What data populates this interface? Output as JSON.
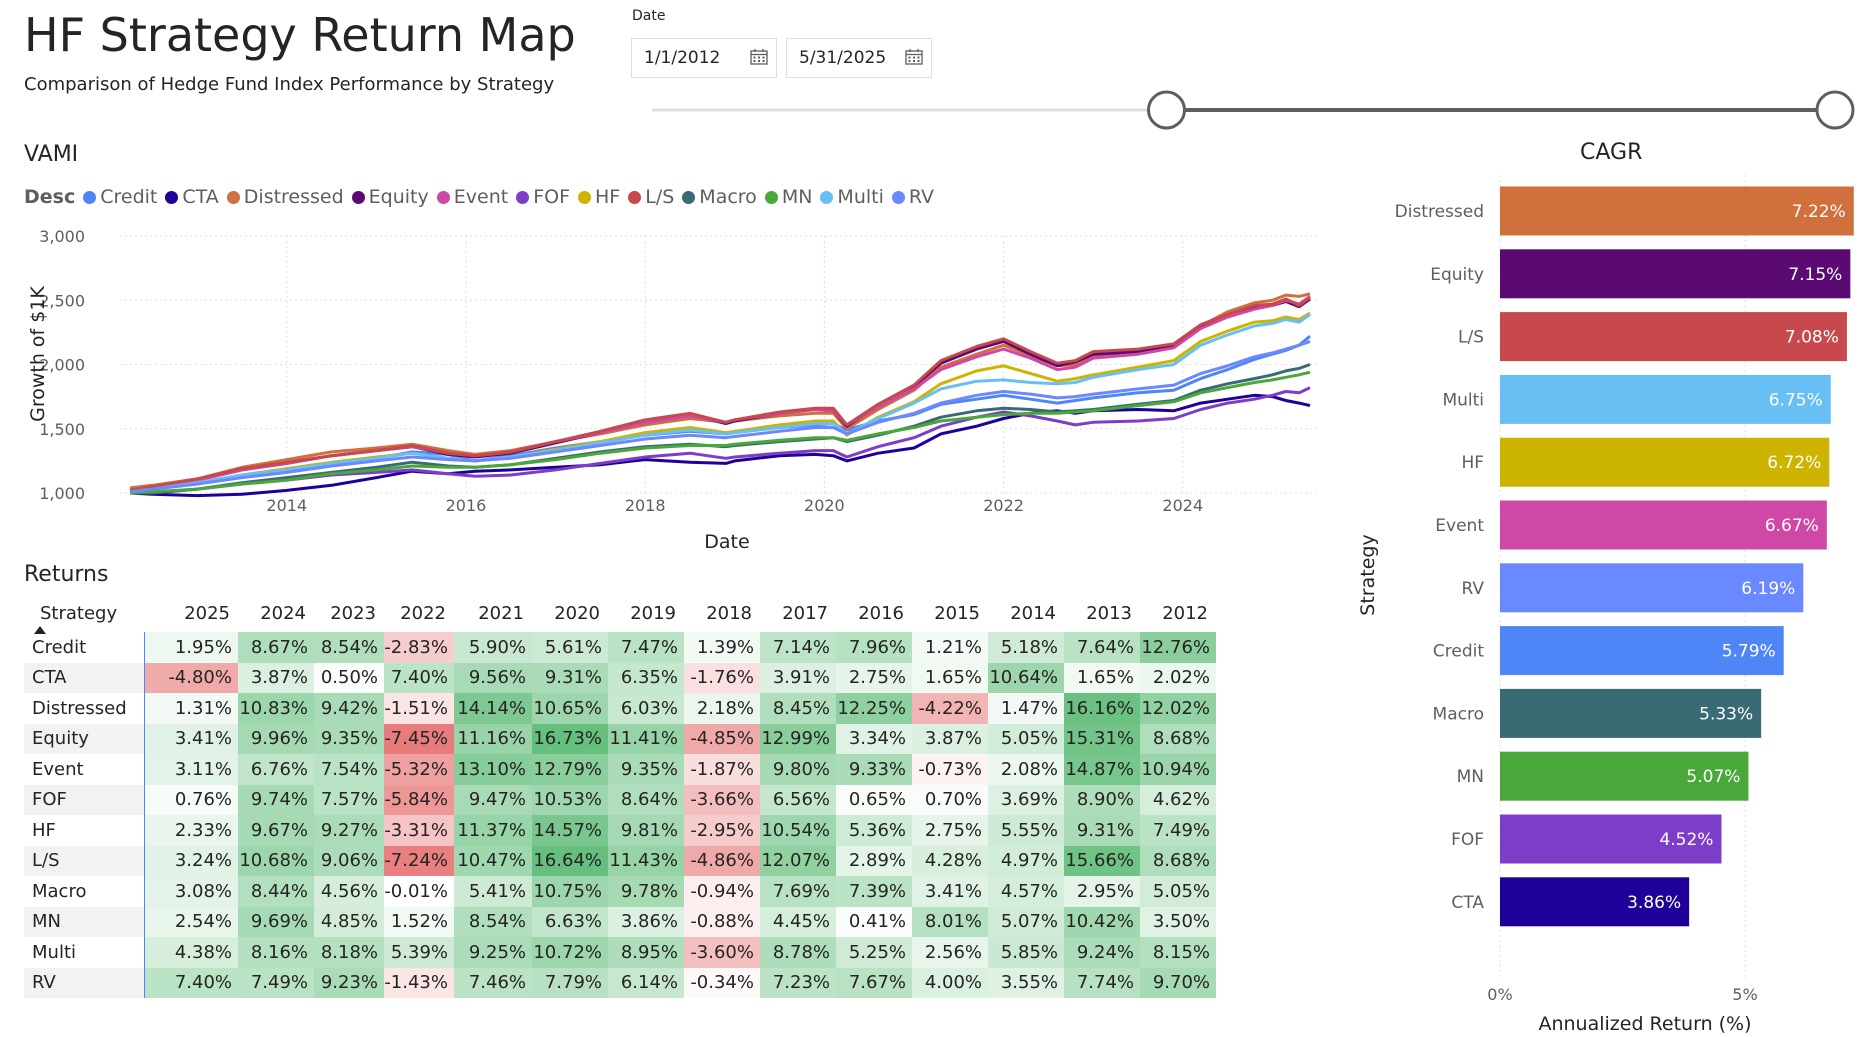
{
  "header": {
    "title": "HF Strategy Return Map",
    "subtitle": "Comparison of Hedge Fund Index Performance by Strategy"
  },
  "date_filter": {
    "label": "Date",
    "start": "1/1/2012",
    "end": "5/31/2025",
    "range_start_fraction": 0.425,
    "range_end_fraction": 1.0
  },
  "colors": {
    "Credit": "#4f86f7",
    "CTA": "#1f0099",
    "Distressed": "#d0703c",
    "Equity": "#5b0a73",
    "Event": "#d048a6",
    "FOF": "#7d3dc9",
    "HF": "#cdb400",
    "L/S": "#c7494e",
    "Macro": "#386b74",
    "MN": "#4aa73a",
    "Multi": "#67bff3",
    "RV": "#6a88ff"
  },
  "chart_data": [
    {
      "id": "vami",
      "type": "line",
      "title": "VAMI",
      "xlabel": "Date",
      "ylabel": "Growth of $1K",
      "legend_title": "Desc",
      "legend_position": "top-left",
      "ylim": [
        1000,
        3000
      ],
      "xlim": [
        2012.25,
        2025.42
      ],
      "y_ticks": [
        "1,000",
        "1,500",
        "2,000",
        "2,500",
        "3,000"
      ],
      "y_tick_values": [
        1000,
        1500,
        2000,
        2500,
        3000
      ],
      "x_ticks": [
        "2014",
        "2016",
        "2018",
        "2020",
        "2022",
        "2024"
      ],
      "x_tick_values": [
        2014,
        2016,
        2018,
        2020,
        2022,
        2024
      ],
      "grid": true,
      "x": [
        2012.25,
        2012.5,
        2013.0,
        2013.5,
        2014.0,
        2014.5,
        2015.0,
        2015.4,
        2015.8,
        2016.1,
        2016.5,
        2017.0,
        2017.5,
        2018.0,
        2018.5,
        2018.9,
        2019.0,
        2019.5,
        2019.9,
        2020.1,
        2020.25,
        2020.6,
        2021.0,
        2021.3,
        2021.7,
        2022.0,
        2022.3,
        2022.6,
        2022.8,
        2023.0,
        2023.5,
        2023.9,
        2024.2,
        2024.5,
        2024.8,
        2025.0,
        2025.15,
        2025.3,
        2025.42
      ],
      "series": [
        {
          "name": "Credit",
          "values": [
            1010,
            1030,
            1070,
            1130,
            1170,
            1230,
            1270,
            1320,
            1300,
            1250,
            1290,
            1350,
            1400,
            1450,
            1480,
            1460,
            1470,
            1510,
            1530,
            1540,
            1490,
            1560,
            1610,
            1690,
            1730,
            1760,
            1730,
            1700,
            1720,
            1740,
            1780,
            1800,
            1890,
            1960,
            2040,
            2080,
            2110,
            2150,
            2220
          ]
        },
        {
          "name": "CTA",
          "values": [
            1000,
            990,
            980,
            990,
            1020,
            1060,
            1120,
            1170,
            1150,
            1170,
            1180,
            1200,
            1220,
            1260,
            1240,
            1230,
            1250,
            1290,
            1300,
            1290,
            1250,
            1310,
            1350,
            1460,
            1520,
            1580,
            1620,
            1640,
            1620,
            1640,
            1650,
            1640,
            1700,
            1730,
            1760,
            1750,
            1720,
            1700,
            1680
          ]
        },
        {
          "name": "Distressed",
          "values": [
            1040,
            1060,
            1110,
            1200,
            1260,
            1320,
            1350,
            1380,
            1330,
            1300,
            1330,
            1400,
            1460,
            1530,
            1580,
            1550,
            1560,
            1600,
            1620,
            1620,
            1500,
            1650,
            1800,
            1980,
            2080,
            2150,
            2070,
            1990,
            2000,
            2060,
            2110,
            2140,
            2300,
            2410,
            2480,
            2500,
            2540,
            2530,
            2550
          ]
        },
        {
          "name": "Equity",
          "values": [
            1020,
            1040,
            1100,
            1180,
            1230,
            1290,
            1330,
            1360,
            1300,
            1280,
            1310,
            1390,
            1470,
            1560,
            1610,
            1540,
            1560,
            1620,
            1650,
            1640,
            1520,
            1680,
            1830,
            2010,
            2120,
            2180,
            2080,
            1990,
            2020,
            2080,
            2100,
            2150,
            2300,
            2380,
            2450,
            2460,
            2490,
            2450,
            2510
          ]
        },
        {
          "name": "Event",
          "values": [
            1020,
            1050,
            1100,
            1180,
            1230,
            1290,
            1330,
            1360,
            1310,
            1290,
            1320,
            1400,
            1470,
            1550,
            1600,
            1550,
            1570,
            1620,
            1650,
            1640,
            1530,
            1670,
            1810,
            1960,
            2060,
            2120,
            2050,
            1960,
            1980,
            2050,
            2080,
            2130,
            2280,
            2370,
            2430,
            2460,
            2500,
            2470,
            2530
          ]
        },
        {
          "name": "FOF",
          "values": [
            1000,
            1000,
            1030,
            1070,
            1100,
            1140,
            1160,
            1180,
            1150,
            1130,
            1140,
            1180,
            1230,
            1280,
            1310,
            1270,
            1280,
            1310,
            1330,
            1330,
            1280,
            1360,
            1430,
            1520,
            1590,
            1630,
            1600,
            1560,
            1530,
            1550,
            1560,
            1580,
            1650,
            1700,
            1730,
            1760,
            1790,
            1780,
            1820
          ]
        },
        {
          "name": "HF",
          "values": [
            1010,
            1030,
            1080,
            1140,
            1190,
            1240,
            1280,
            1310,
            1270,
            1250,
            1280,
            1340,
            1400,
            1470,
            1510,
            1470,
            1480,
            1530,
            1560,
            1560,
            1450,
            1590,
            1710,
            1850,
            1950,
            1990,
            1930,
            1870,
            1890,
            1920,
            1980,
            2030,
            2180,
            2260,
            2330,
            2340,
            2370,
            2350,
            2400
          ]
        },
        {
          "name": "L/S",
          "values": [
            1020,
            1050,
            1110,
            1190,
            1240,
            1290,
            1330,
            1370,
            1310,
            1290,
            1320,
            1400,
            1480,
            1570,
            1620,
            1550,
            1570,
            1630,
            1660,
            1660,
            1530,
            1690,
            1840,
            2030,
            2140,
            2200,
            2100,
            2010,
            2030,
            2100,
            2120,
            2160,
            2310,
            2390,
            2460,
            2470,
            2510,
            2460,
            2520
          ]
        },
        {
          "name": "Macro",
          "values": [
            1000,
            1000,
            1030,
            1080,
            1120,
            1160,
            1200,
            1240,
            1210,
            1200,
            1220,
            1270,
            1320,
            1360,
            1380,
            1360,
            1370,
            1400,
            1420,
            1430,
            1400,
            1450,
            1520,
            1590,
            1640,
            1660,
            1650,
            1630,
            1640,
            1650,
            1690,
            1720,
            1800,
            1850,
            1890,
            1920,
            1950,
            1970,
            2000
          ]
        },
        {
          "name": "MN",
          "values": [
            1000,
            1010,
            1030,
            1070,
            1100,
            1150,
            1180,
            1210,
            1200,
            1200,
            1220,
            1260,
            1310,
            1350,
            1370,
            1370,
            1380,
            1410,
            1430,
            1430,
            1410,
            1460,
            1510,
            1560,
            1590,
            1610,
            1620,
            1620,
            1630,
            1640,
            1680,
            1710,
            1780,
            1820,
            1860,
            1880,
            1900,
            1920,
            1940
          ]
        },
        {
          "name": "Multi",
          "values": [
            1010,
            1030,
            1080,
            1140,
            1180,
            1230,
            1270,
            1310,
            1270,
            1250,
            1280,
            1330,
            1390,
            1450,
            1490,
            1460,
            1470,
            1510,
            1540,
            1540,
            1460,
            1580,
            1700,
            1810,
            1870,
            1880,
            1860,
            1850,
            1860,
            1900,
            1960,
            2000,
            2150,
            2230,
            2300,
            2320,
            2350,
            2330,
            2390
          ]
        },
        {
          "name": "RV",
          "values": [
            1010,
            1030,
            1070,
            1120,
            1160,
            1210,
            1250,
            1280,
            1260,
            1250,
            1270,
            1320,
            1370,
            1420,
            1450,
            1430,
            1440,
            1480,
            1510,
            1510,
            1460,
            1550,
            1620,
            1700,
            1760,
            1790,
            1770,
            1740,
            1750,
            1770,
            1810,
            1840,
            1930,
            1990,
            2060,
            2090,
            2120,
            2150,
            2180
          ]
        }
      ]
    },
    {
      "id": "cagr",
      "type": "bar",
      "orientation": "horizontal",
      "title": "CAGR",
      "xlabel": "Annualized Return (%)",
      "ylabel": "Strategy",
      "xlim": [
        0,
        8
      ],
      "x_ticks": [
        "0%",
        "5%"
      ],
      "x_tick_values": [
        0,
        5
      ],
      "categories": [
        "Distressed",
        "Equity",
        "L/S",
        "Multi",
        "HF",
        "Event",
        "RV",
        "Credit",
        "Macro",
        "MN",
        "FOF",
        "CTA"
      ],
      "values": [
        7.22,
        7.15,
        7.08,
        6.75,
        6.72,
        6.67,
        6.19,
        5.79,
        5.33,
        5.07,
        4.52,
        3.86
      ],
      "labels": [
        "7.22%",
        "7.15%",
        "7.08%",
        "6.75%",
        "6.72%",
        "6.67%",
        "6.19%",
        "5.79%",
        "5.33%",
        "5.07%",
        "4.52%",
        "3.86%"
      ]
    },
    {
      "id": "returns",
      "type": "table",
      "title": "Returns",
      "row_header": "Strategy",
      "columns": [
        "2025",
        "2024",
        "2023",
        "2022",
        "2021",
        "2020",
        "2019",
        "2018",
        "2017",
        "2016",
        "2015",
        "2014",
        "2013",
        "2012"
      ],
      "rows": [
        {
          "strategy": "Credit",
          "values": [
            "1.95%",
            "8.67%",
            "8.54%",
            "-2.83%",
            "5.90%",
            "5.61%",
            "7.47%",
            "1.39%",
            "7.14%",
            "7.96%",
            "1.21%",
            "5.18%",
            "7.64%",
            "12.76%"
          ]
        },
        {
          "strategy": "CTA",
          "values": [
            "-4.80%",
            "3.87%",
            "0.50%",
            "7.40%",
            "9.56%",
            "9.31%",
            "6.35%",
            "-1.76%",
            "3.91%",
            "2.75%",
            "1.65%",
            "10.64%",
            "1.65%",
            "2.02%"
          ]
        },
        {
          "strategy": "Distressed",
          "values": [
            "1.31%",
            "10.83%",
            "9.42%",
            "-1.51%",
            "14.14%",
            "10.65%",
            "6.03%",
            "2.18%",
            "8.45%",
            "12.25%",
            "-4.22%",
            "1.47%",
            "16.16%",
            "12.02%"
          ]
        },
        {
          "strategy": "Equity",
          "values": [
            "3.41%",
            "9.96%",
            "9.35%",
            "-7.45%",
            "11.16%",
            "16.73%",
            "11.41%",
            "-4.85%",
            "12.99%",
            "3.34%",
            "3.87%",
            "5.05%",
            "15.31%",
            "8.68%"
          ]
        },
        {
          "strategy": "Event",
          "values": [
            "3.11%",
            "6.76%",
            "7.54%",
            "-5.32%",
            "13.10%",
            "12.79%",
            "9.35%",
            "-1.87%",
            "9.80%",
            "9.33%",
            "-0.73%",
            "2.08%",
            "14.87%",
            "10.94%"
          ]
        },
        {
          "strategy": "FOF",
          "values": [
            "0.76%",
            "9.74%",
            "7.57%",
            "-5.84%",
            "9.47%",
            "10.53%",
            "8.64%",
            "-3.66%",
            "6.56%",
            "0.65%",
            "0.70%",
            "3.69%",
            "8.90%",
            "4.62%"
          ]
        },
        {
          "strategy": "HF",
          "values": [
            "2.33%",
            "9.67%",
            "9.27%",
            "-3.31%",
            "11.37%",
            "14.57%",
            "9.81%",
            "-2.95%",
            "10.54%",
            "5.36%",
            "2.75%",
            "5.55%",
            "9.31%",
            "7.49%"
          ]
        },
        {
          "strategy": "L/S",
          "values": [
            "3.24%",
            "10.68%",
            "9.06%",
            "-7.24%",
            "10.47%",
            "16.64%",
            "11.43%",
            "-4.86%",
            "12.07%",
            "2.89%",
            "4.28%",
            "4.97%",
            "15.66%",
            "8.68%"
          ]
        },
        {
          "strategy": "Macro",
          "values": [
            "3.08%",
            "8.44%",
            "4.56%",
            "-0.01%",
            "5.41%",
            "10.75%",
            "9.78%",
            "-0.94%",
            "7.69%",
            "7.39%",
            "3.41%",
            "4.57%",
            "2.95%",
            "5.05%"
          ]
        },
        {
          "strategy": "MN",
          "values": [
            "2.54%",
            "9.69%",
            "4.85%",
            "1.52%",
            "8.54%",
            "6.63%",
            "3.86%",
            "-0.88%",
            "4.45%",
            "0.41%",
            "8.01%",
            "5.07%",
            "10.42%",
            "3.50%"
          ]
        },
        {
          "strategy": "Multi",
          "values": [
            "4.38%",
            "8.16%",
            "8.18%",
            "5.39%",
            "9.25%",
            "10.72%",
            "8.95%",
            "-3.60%",
            "8.78%",
            "5.25%",
            "2.56%",
            "5.85%",
            "9.24%",
            "8.15%"
          ]
        },
        {
          "strategy": "RV",
          "values": [
            "7.40%",
            "7.49%",
            "9.23%",
            "-1.43%",
            "7.46%",
            "7.79%",
            "6.14%",
            "-0.34%",
            "7.23%",
            "7.67%",
            "4.00%",
            "3.55%",
            "7.74%",
            "9.70%"
          ]
        }
      ]
    }
  ]
}
